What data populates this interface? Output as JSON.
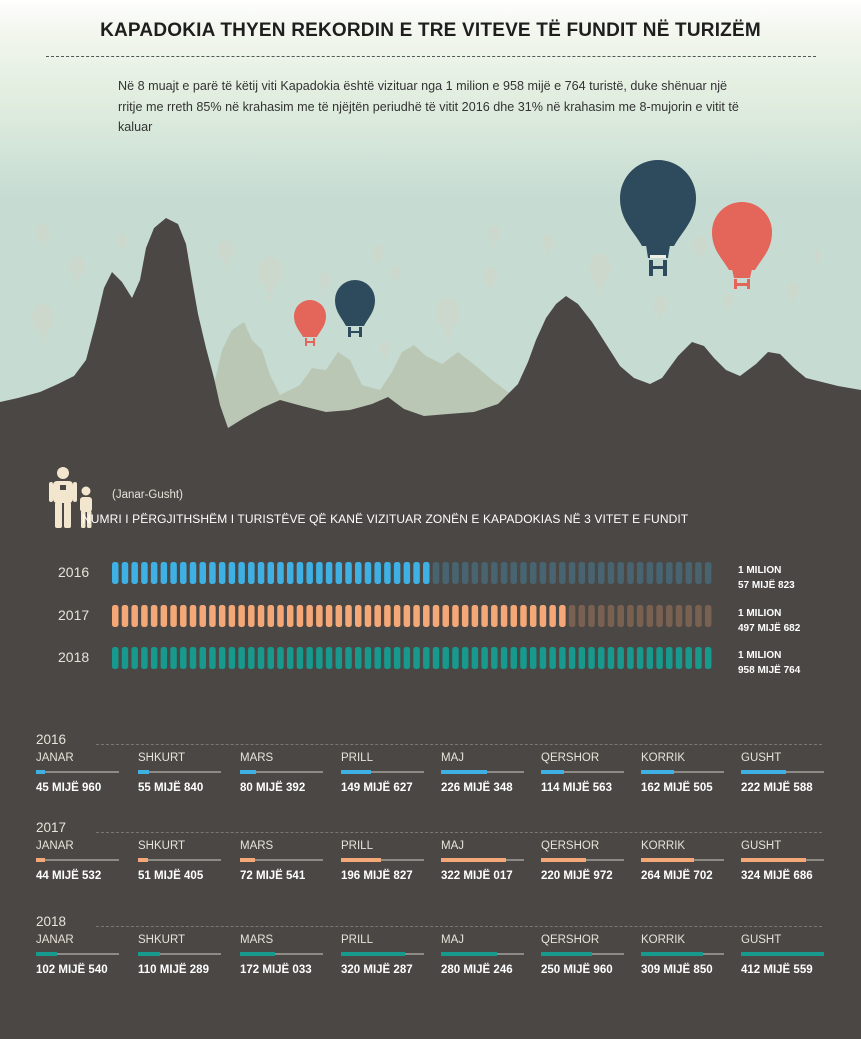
{
  "header": {
    "title": "KAPADOKIA THYEN REKORDIN E TRE VITEVE TË FUNDIT NË TURIZËM",
    "intro": "Në 8 muajt e parë të këtij viti Kapadokia është vizituar nga 1 milion e 958 mijë e 764 turistë, duke shënuar një rritje me rreth 85% në krahasim me të njëjtën periudhë të vitit 2016 dhe 31% në krahasim me 8-mujorin e vitit të kaluar"
  },
  "colors": {
    "2016": "#3fb0e4",
    "2017": "#f4a777",
    "2018": "#17998e",
    "balloon_navy": "#2e4a5d",
    "balloon_red": "#e4655a",
    "ground": "#4a4745"
  },
  "icons": [
    "people-icon",
    "hot-air-balloon-icon",
    "mountain-silhouette"
  ],
  "chart_data": [
    {
      "type": "bar",
      "title": "NUMRI I PËRGJITHSHËM I TURISTËVE QË KANË VIZITUAR ZONËN E KAPADOKIAS NË 3 VITET E FUNDIT",
      "period": "(Janar-Gusht)",
      "categories": [
        "2016",
        "2017",
        "2018"
      ],
      "values": [
        1057823,
        1497682,
        1958764
      ],
      "value_labels": [
        [
          "1 MILION",
          "57 MIJË 823"
        ],
        [
          "1 MILION",
          "497 MIJË 682"
        ],
        [
          "1 MILION",
          "958 MIJË 764"
        ]
      ],
      "xlim": [
        0,
        1958764
      ]
    },
    {
      "type": "bar",
      "categories": [
        "JANAR",
        "SHKURT",
        "MARS",
        "PRILL",
        "MAJ",
        "QERSHOR",
        "KORRIK",
        "GUSHT"
      ],
      "xlim": [
        0,
        412559
      ],
      "series": [
        {
          "name": "2016",
          "values": [
            45960,
            55840,
            80392,
            149627,
            226348,
            114563,
            162505,
            222588
          ],
          "labels": [
            "45 MIJË 960",
            "55 MIJË 840",
            "80 MIJË 392",
            "149 MIJË 627",
            "226 MIJË 348",
            "114 MIJË 563",
            "162 MIJË 505",
            "222 MIJË 588"
          ]
        },
        {
          "name": "2017",
          "values": [
            44532,
            51405,
            72541,
            196827,
            322017,
            220972,
            264702,
            324686
          ],
          "labels": [
            "44 MIJË 532",
            "51 MIJË 405",
            "72 MIJË 541",
            "196 MIJË 827",
            "322 MIJË 017",
            "220 MIJË 972",
            "264 MIJË 702",
            "324 MIJË 686"
          ]
        },
        {
          "name": "2018",
          "values": [
            102540,
            110289,
            172033,
            320287,
            280246,
            250960,
            309850,
            412559
          ],
          "labels": [
            "102 MIJË 540",
            "110 MIJË 289",
            "172 MIJË 033",
            "320 MIJË 287",
            "280 MIJË 246",
            "250 MIJË 960",
            "309 MIJË 850",
            "412 MIJË 559"
          ]
        }
      ]
    }
  ]
}
